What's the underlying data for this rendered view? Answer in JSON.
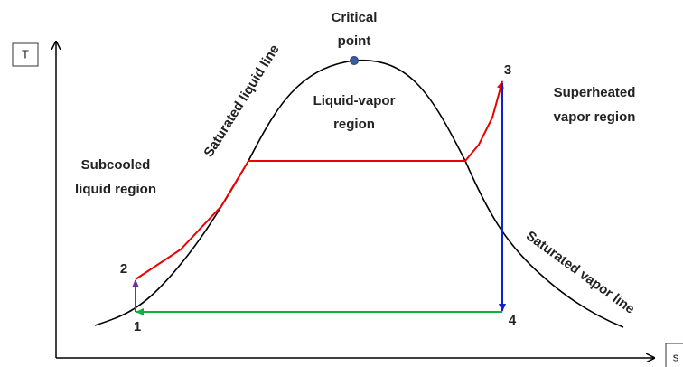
{
  "axes": {
    "y_label": "T",
    "x_label": "s"
  },
  "critical_point": {
    "line1": "Critical",
    "line2": "point"
  },
  "regions": {
    "liquid_vapor": {
      "line1": "Liquid-vapor",
      "line2": "region"
    },
    "superheated": {
      "line1": "Superheated",
      "line2": "vapor region"
    },
    "subcooled": {
      "line1": "Subcooled",
      "line2": "liquid region"
    }
  },
  "lines": {
    "saturated_liquid": "Saturated liquid line",
    "saturated_vapor": "Saturated vapor line"
  },
  "points": [
    "1",
    "2",
    "3",
    "4"
  ]
}
